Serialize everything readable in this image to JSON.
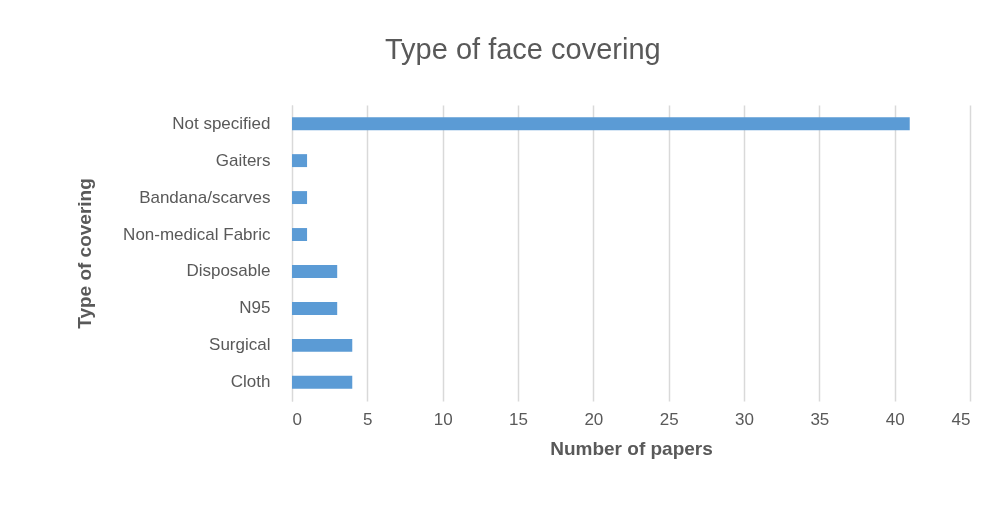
{
  "chart_data": {
    "type": "bar",
    "orientation": "horizontal",
    "title": "Type of face covering",
    "xlabel": "Number of papers",
    "ylabel": "Type of covering",
    "categories": [
      "Not specified",
      "Gaiters",
      "Bandana/scarves",
      "Non-medical Fabric",
      "Disposable",
      "N95",
      "Surgical",
      "Cloth"
    ],
    "values": [
      41,
      1,
      1,
      1,
      3,
      3,
      4,
      4
    ],
    "color": "#5b9bd5",
    "xlim": [
      0,
      45
    ],
    "xticks": [
      0,
      5,
      10,
      15,
      20,
      25,
      30,
      35,
      40,
      45
    ],
    "grid": "x"
  }
}
